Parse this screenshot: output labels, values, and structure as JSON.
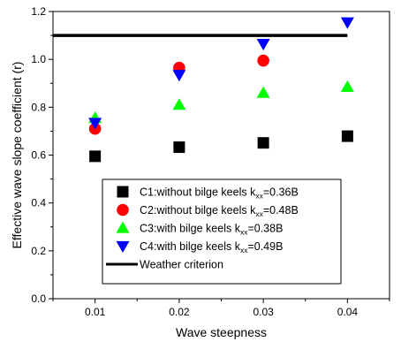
{
  "chart_data": {
    "type": "scatter",
    "xlabel": "Wave steepness",
    "ylabel": "Effective wave slope coefficient (r)",
    "xlim": [
      0.005,
      0.045
    ],
    "ylim": [
      0.0,
      1.2
    ],
    "x_ticks": [
      "0.01",
      "0.02",
      "0.03",
      "0.04"
    ],
    "y_ticks": [
      "0.0",
      "0.2",
      "0.4",
      "0.6",
      "0.8",
      "1.0",
      "1.2"
    ],
    "grid": false,
    "legend_position": "bottom-center",
    "series": [
      {
        "name": "C1:without bilge keels k",
        "name_sub": "xx",
        "name_suffix": "=0.36B",
        "marker": "square",
        "color": "#000000",
        "x": [
          0.01,
          0.02,
          0.03,
          0.04
        ],
        "y": [
          0.595,
          0.633,
          0.651,
          0.679
        ]
      },
      {
        "name": "C2:without bilge keels k",
        "name_sub": "xx",
        "name_suffix": "=0.48B",
        "marker": "circle",
        "color": "#ff0000",
        "x": [
          0.01,
          0.02,
          0.03
        ],
        "y": [
          0.71,
          0.965,
          0.995
        ]
      },
      {
        "name": "C3:with bilge keels k",
        "name_sub": "xx",
        "name_suffix": "=0.38B",
        "marker": "triangle-up",
        "color": "#00ff00",
        "x": [
          0.01,
          0.02,
          0.03,
          0.04
        ],
        "y": [
          0.755,
          0.81,
          0.86,
          0.885
        ]
      },
      {
        "name": "C4:with bilge keels k",
        "name_sub": "xx",
        "name_suffix": "=0.49B",
        "marker": "triangle-down",
        "color": "#0000ff",
        "x": [
          0.01,
          0.02,
          0.03,
          0.04
        ],
        "y": [
          0.735,
          0.935,
          1.065,
          1.155
        ]
      }
    ],
    "reference_line": {
      "name": "Weather criterion",
      "y": 1.1,
      "x_range": [
        0.005,
        0.04
      ],
      "color": "#000000"
    }
  }
}
